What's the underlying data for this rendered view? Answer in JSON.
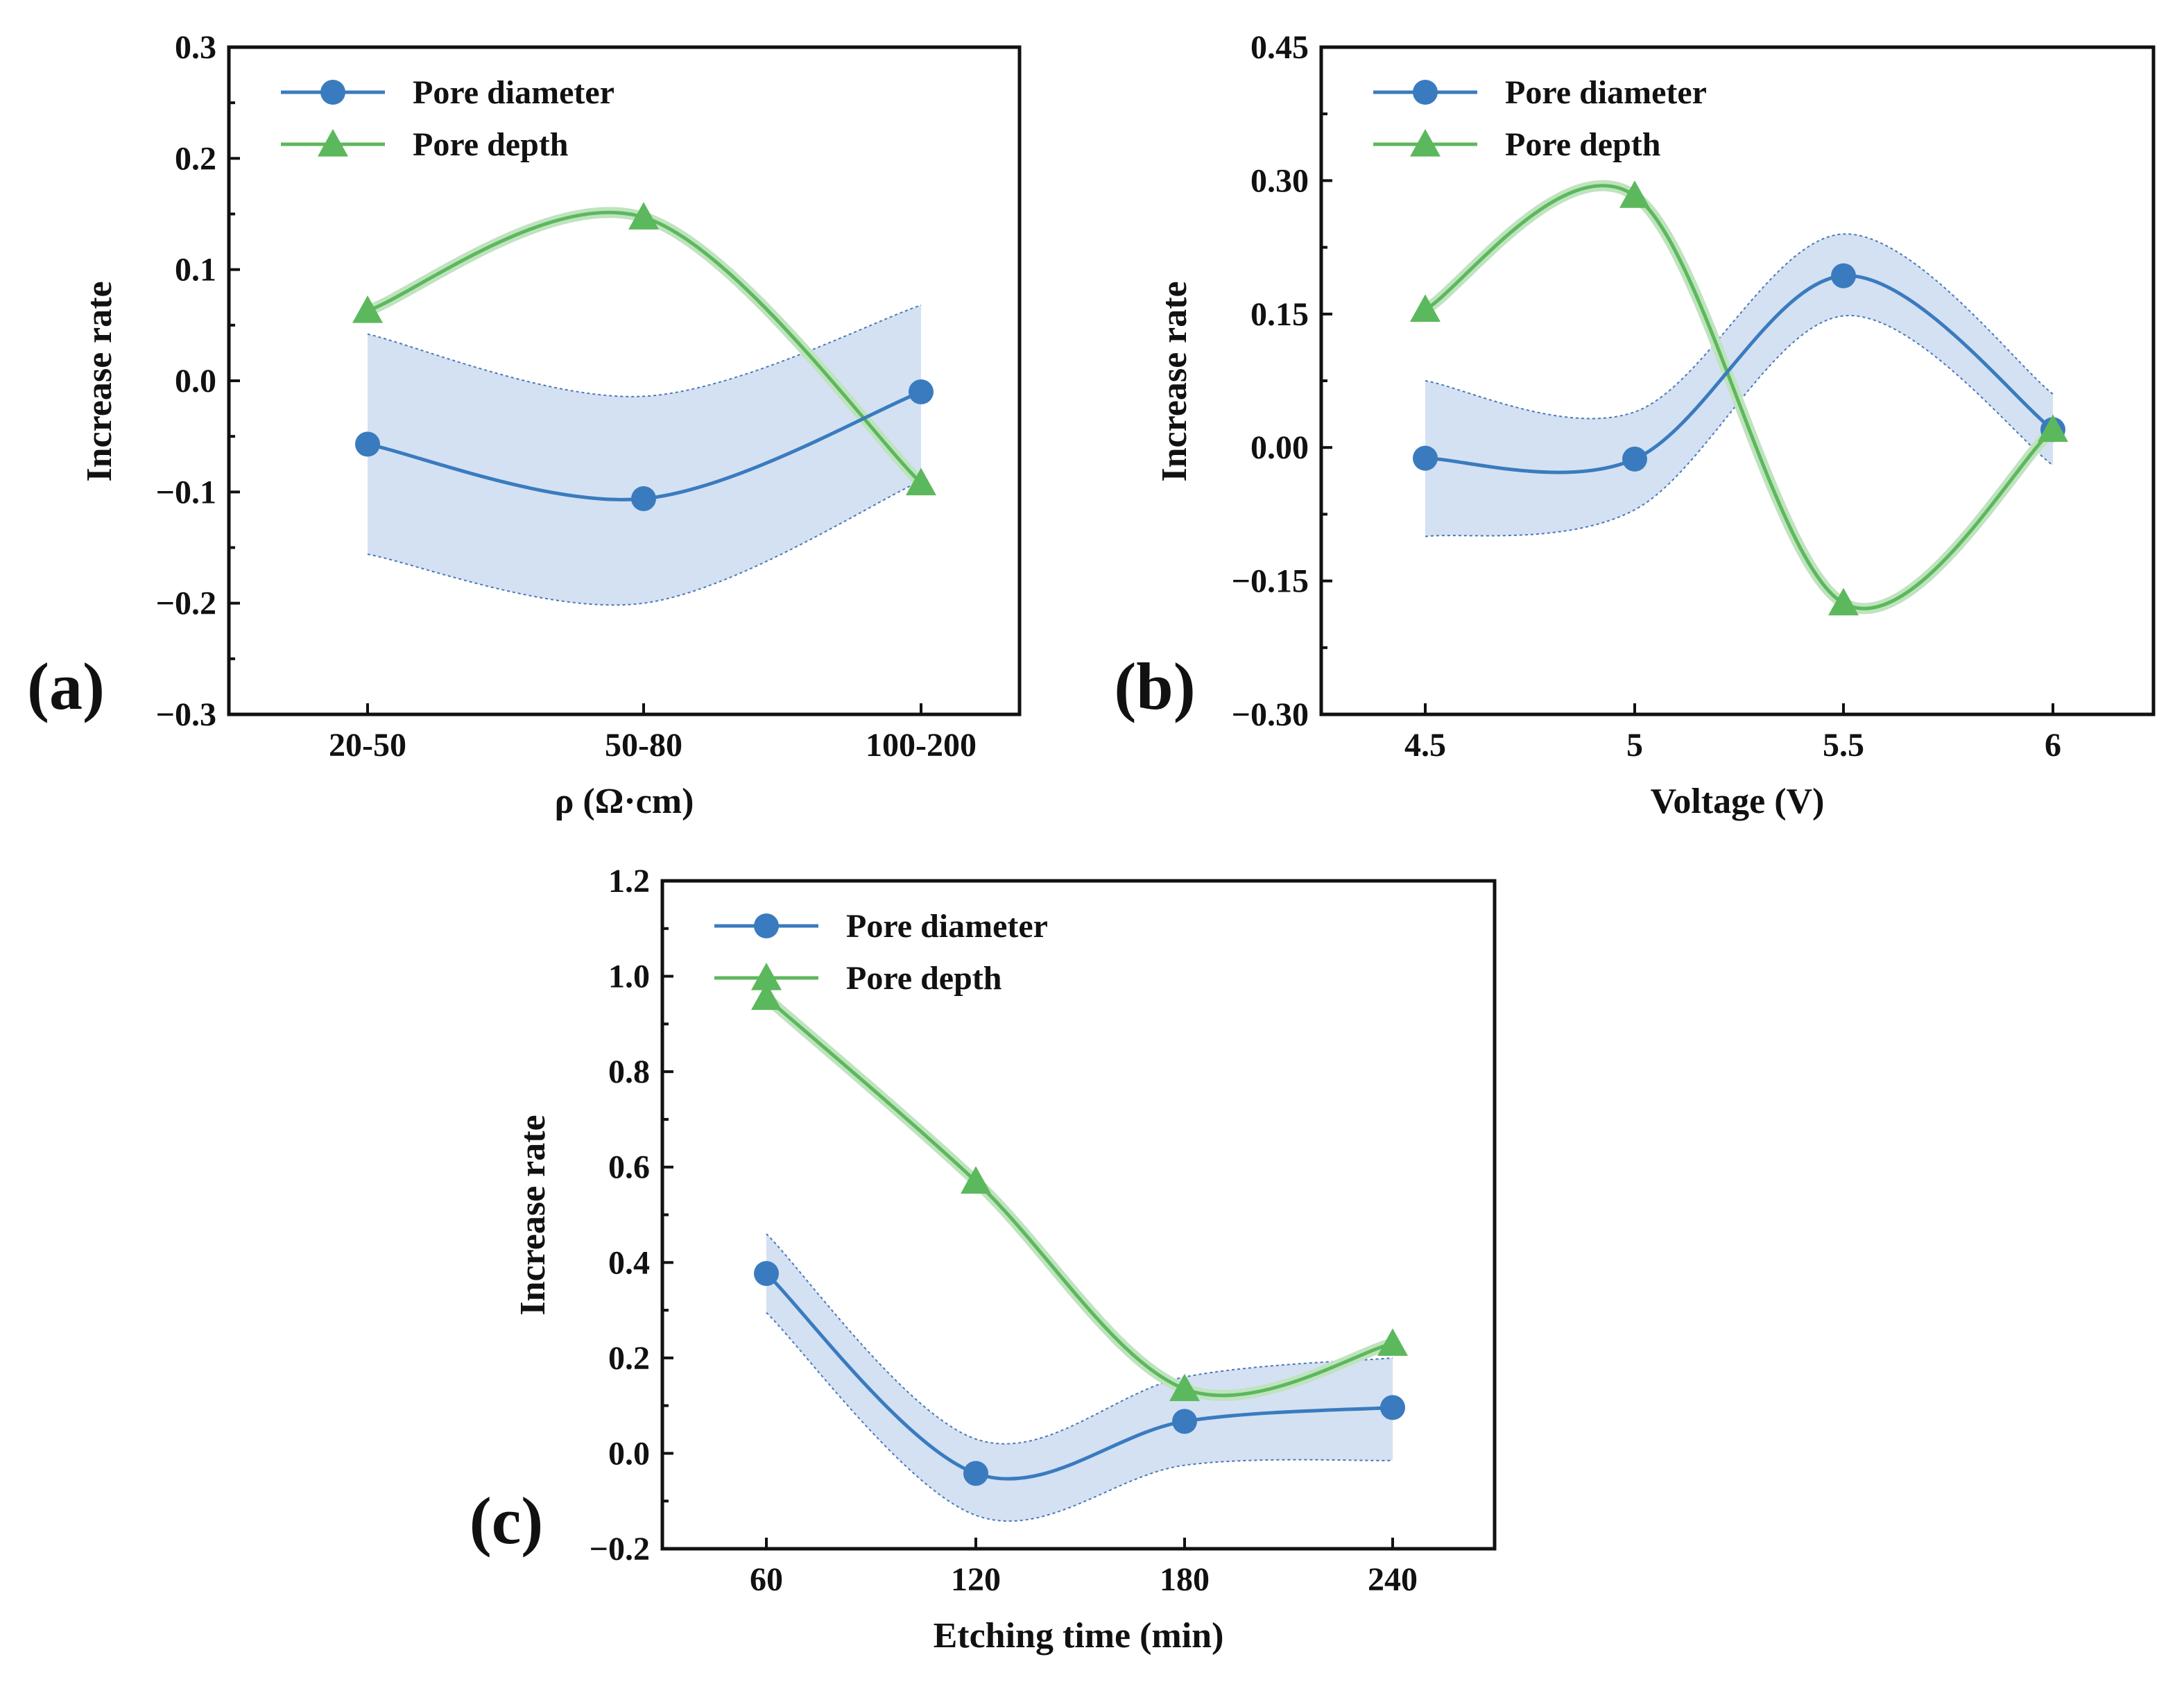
{
  "colors": {
    "diameter": "#3a7bbf",
    "depth": "#5cb85c",
    "band_fill": "#c9daf0",
    "band_edge": "#4a78b8"
  },
  "legend": {
    "diameter_label": "Pore diameter",
    "depth_label": "Pore depth"
  },
  "chart_data": [
    {
      "panel_label": "(a)",
      "type": "line",
      "xlabel": "ρ (Ω·cm)",
      "ylabel": "Increase rate",
      "categories": [
        "20-50",
        "50-80",
        "100-200"
      ],
      "yticks": [
        "0.3",
        "0.2",
        "0.1",
        "0.0",
        "−0.1",
        "−0.2",
        "−0.3"
      ],
      "ylim": [
        -0.3,
        0.3
      ],
      "legend_position": "top-left",
      "series": [
        {
          "name": "Pore diameter",
          "marker": "circle",
          "values": [
            -0.057,
            -0.106,
            -0.01
          ],
          "band_upper": [
            0.042,
            -0.014,
            0.068
          ],
          "band_lower": [
            -0.156,
            -0.2,
            -0.09
          ]
        },
        {
          "name": "Pore depth",
          "marker": "triangle",
          "values": [
            0.063,
            0.147,
            -0.092
          ]
        }
      ]
    },
    {
      "panel_label": "(b)",
      "type": "line",
      "xlabel": "Voltage (V)",
      "ylabel": "Increase rate",
      "categories": [
        "4.5",
        "5",
        "5.5",
        "6"
      ],
      "yticks": [
        "0.45",
        "0.30",
        "0.15",
        "0.00",
        "−0.15",
        "−0.30"
      ],
      "ylim": [
        -0.3,
        0.45
      ],
      "legend_position": "top-left",
      "series": [
        {
          "name": "Pore diameter",
          "marker": "circle",
          "values": [
            -0.012,
            -0.013,
            0.193,
            0.02
          ],
          "band_upper": [
            0.075,
            0.04,
            0.24,
            0.06
          ],
          "band_lower": [
            -0.1,
            -0.07,
            0.148,
            -0.02
          ]
        },
        {
          "name": "Pore depth",
          "marker": "triangle",
          "values": [
            0.155,
            0.283,
            -0.175,
            0.02
          ]
        }
      ]
    },
    {
      "panel_label": "(c)",
      "type": "line",
      "xlabel": "Etching time (min)",
      "ylabel": "Increase rate",
      "categories": [
        "60",
        "120",
        "180",
        "240"
      ],
      "yticks": [
        "1.2",
        "1.0",
        "0.8",
        "0.6",
        "0.4",
        "0.2",
        "0.0",
        "−0.2"
      ],
      "ylim": [
        -0.2,
        1.2
      ],
      "legend_position": "top-left",
      "series": [
        {
          "name": "Pore diameter",
          "marker": "circle",
          "values": [
            0.377,
            -0.042,
            0.067,
            0.096
          ],
          "band_upper": [
            0.46,
            0.03,
            0.16,
            0.2
          ],
          "band_lower": [
            0.295,
            -0.13,
            -0.025,
            -0.015
          ]
        },
        {
          "name": "Pore depth",
          "marker": "triangle",
          "values": [
            0.955,
            0.57,
            0.135,
            0.23
          ]
        }
      ]
    }
  ]
}
